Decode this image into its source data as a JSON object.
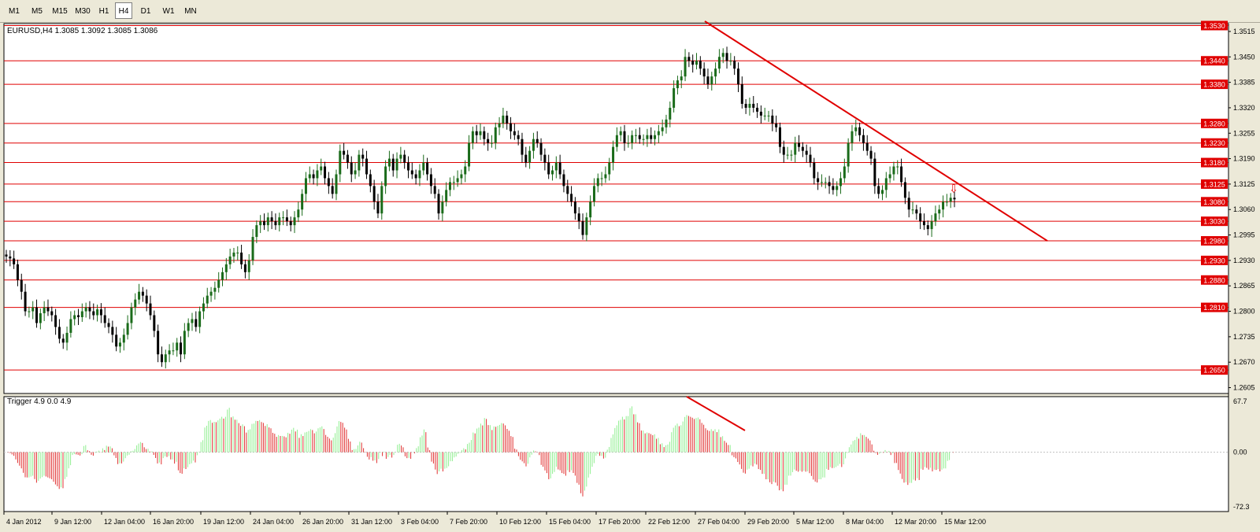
{
  "timeframes": [
    "M1",
    "M5",
    "M15",
    "M30",
    "H1",
    "H4",
    "D1",
    "W1",
    "MN"
  ],
  "active_timeframe": "H4",
  "main": {
    "header": "EURUSD,H4  1.3085 1.3092 1.3085 1.3086",
    "price_range": [
      1.259,
      1.3535
    ],
    "hlines": [
      1.353,
      1.344,
      1.338,
      1.328,
      1.323,
      1.318,
      1.3125,
      1.308,
      1.303,
      1.298,
      1.293,
      1.288,
      1.281,
      1.265
    ],
    "hline_labels": [
      "1.3530",
      "1.3440",
      "1.3380",
      "1.3280",
      "1.3230",
      "1.3180",
      "1.3125",
      "1.3080",
      "1.3030",
      "1.2980",
      "1.2930",
      "1.2880",
      "1.2810",
      "1.2650"
    ],
    "axis_ticks": [
      1.3515,
      1.345,
      1.3385,
      1.332,
      1.3255,
      1.319,
      1.3125,
      1.306,
      1.2995,
      1.293,
      1.2865,
      1.28,
      1.2735,
      1.267,
      1.2605
    ],
    "axis_tick_labels": [
      "1.3515",
      "1.3450",
      "1.3385",
      "1.3320",
      "1.3255",
      "1.3190",
      "1.3125",
      "1.3060",
      "1.2995",
      "1.2930",
      "1.2865",
      "1.2800",
      "1.2735",
      "1.2670",
      "1.2605"
    ],
    "closes": [
      1.294,
      1.2935,
      1.292,
      1.288,
      1.285,
      1.28,
      1.28,
      1.281,
      1.277,
      1.2795,
      1.281,
      1.28,
      1.279,
      1.276,
      1.273,
      1.272,
      1.2745,
      1.278,
      1.279,
      1.2785,
      1.28,
      1.281,
      1.28,
      1.279,
      1.2805,
      1.279,
      1.277,
      1.276,
      1.274,
      1.271,
      1.272,
      1.274,
      1.277,
      1.281,
      1.283,
      1.285,
      1.284,
      1.282,
      1.279,
      1.275,
      1.269,
      1.267,
      1.269,
      1.27,
      1.27,
      1.272,
      1.269,
      1.275,
      1.277,
      1.278,
      1.276,
      1.28,
      1.282,
      1.284,
      1.285,
      1.286,
      1.288,
      1.29,
      1.292,
      1.294,
      1.295,
      1.295,
      1.292,
      1.29,
      1.293,
      1.299,
      1.302,
      1.303,
      1.302,
      1.304,
      1.303,
      1.302,
      1.304,
      1.304,
      1.303,
      1.302,
      1.304,
      1.306,
      1.31,
      1.314,
      1.315,
      1.314,
      1.316,
      1.317,
      1.314,
      1.312,
      1.31,
      1.315,
      1.321,
      1.32,
      1.318,
      1.315,
      1.316,
      1.32,
      1.319,
      1.315,
      1.312,
      1.308,
      1.305,
      1.312,
      1.317,
      1.319,
      1.316,
      1.319,
      1.32,
      1.318,
      1.316,
      1.315,
      1.314,
      1.316,
      1.318,
      1.315,
      1.312,
      1.31,
      1.305,
      1.308,
      1.311,
      1.313,
      1.313,
      1.314,
      1.315,
      1.317,
      1.323,
      1.326,
      1.325,
      1.326,
      1.324,
      1.323,
      1.323,
      1.327,
      1.328,
      1.33,
      1.328,
      1.326,
      1.325,
      1.324,
      1.32,
      1.318,
      1.321,
      1.324,
      1.323,
      1.32,
      1.318,
      1.315,
      1.316,
      1.318,
      1.315,
      1.312,
      1.31,
      1.308,
      1.305,
      1.303,
      1.2995,
      1.304,
      1.308,
      1.312,
      1.314,
      1.314,
      1.315,
      1.318,
      1.322,
      1.325,
      1.326,
      1.323,
      1.323,
      1.325,
      1.325,
      1.324,
      1.324,
      1.325,
      1.324,
      1.325,
      1.326,
      1.327,
      1.329,
      1.332,
      1.337,
      1.339,
      1.34,
      1.345,
      1.344,
      1.343,
      1.344,
      1.342,
      1.34,
      1.338,
      1.34,
      1.342,
      1.345,
      1.346,
      1.344,
      1.344,
      1.342,
      1.338,
      1.333,
      1.332,
      1.333,
      1.332,
      1.331,
      1.33,
      1.33,
      1.33,
      1.328,
      1.327,
      1.322,
      1.32,
      1.32,
      1.32,
      1.323,
      1.322,
      1.321,
      1.32,
      1.318,
      1.314,
      1.313,
      1.313,
      1.313,
      1.312,
      1.311,
      1.312,
      1.314,
      1.317,
      1.323,
      1.326,
      1.327,
      1.325,
      1.323,
      1.321,
      1.319,
      1.312,
      1.31,
      1.311,
      1.314,
      1.315,
      1.317,
      1.317,
      1.313,
      1.309,
      1.306,
      1.306,
      1.305,
      1.303,
      1.302,
      1.301,
      1.303,
      1.305,
      1.306,
      1.308,
      1.308,
      1.309,
      1.3086
    ],
    "trendline": {
      "from": [
        -5,
        1.3545
      ],
      "to": [
        1.3535,
        1.298
      ]
    },
    "arrow_price": 1.311
  },
  "indicator": {
    "header": "Trigger 4.9 0.0 4.9",
    "range": [
      -72.3,
      67.7
    ],
    "ticks": [
      67.7,
      0.0,
      -72.3
    ],
    "tick_labels": [
      "67.7",
      "0.00",
      "-72.3"
    ],
    "diverge_line": {
      "from": [
        872,
        63
      ],
      "to": [
        946,
        32
      ]
    }
  },
  "time_labels": [
    "4 Jan 2012",
    "9 Jan 12:00",
    "12 Jan 04:00",
    "16 Jan 20:00",
    "19 Jan 12:00",
    "24 Jan 04:00",
    "26 Jan 20:00",
    "31 Jan 12:00",
    "3 Feb 04:00",
    "7 Feb 20:00",
    "10 Feb 12:00",
    "15 Feb 04:00",
    "17 Feb 20:00",
    "22 Feb 12:00",
    "27 Feb 04:00",
    "29 Feb 20:00",
    "5 Mar 12:00",
    "8 Mar 04:00",
    "12 Mar 20:00",
    "15 Mar 12:00"
  ],
  "colors": {
    "bull": "#1a6b1a",
    "bear": "#000000",
    "level": "#e00000",
    "hist_up": "#90ee90",
    "hist_down": "#e03030"
  }
}
